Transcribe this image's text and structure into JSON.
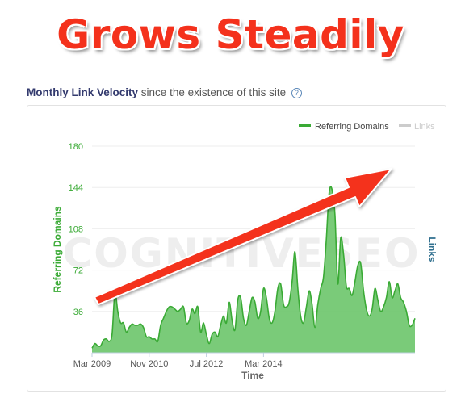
{
  "headline": "Grows Steadily",
  "subtitle": {
    "title": "Monthly Link Velocity",
    "text": "since the existence of this site",
    "help_icon": "question-circle-icon"
  },
  "watermark": "COGNITIVESEO",
  "colors": {
    "series_green": "#3aaa35",
    "area_fill": "#6cc56a",
    "links_gray": "#cccccc",
    "arrow_red": "#f4311c",
    "headline_red": "#f4311c"
  },
  "chart_data": {
    "type": "area",
    "xlabel": "Time",
    "ylabel": "Referring Domains",
    "y2label": "Links",
    "ylim": [
      0,
      180
    ],
    "yticks": [
      36,
      72,
      108,
      144,
      180
    ],
    "xticks": [
      "Mar 2009",
      "Nov 2010",
      "Jul 2012",
      "Mar 2014"
    ],
    "legend": [
      "Referring Domains",
      "Links"
    ],
    "legend_position": "top-right",
    "grid": true,
    "series": [
      {
        "name": "Referring Domains",
        "x_start": "2009-03",
        "x_end": "2014-08",
        "values": [
          4,
          8,
          6,
          6,
          11,
          12,
          10,
          16,
          52,
          36,
          26,
          26,
          18,
          22,
          25,
          24,
          24,
          25,
          22,
          14,
          14,
          12,
          12,
          10,
          24,
          30,
          36,
          40,
          40,
          38,
          36,
          38,
          40,
          26,
          28,
          38,
          34,
          40,
          18,
          26,
          16,
          8,
          16,
          18,
          14,
          24,
          32,
          26,
          44,
          28,
          20,
          46,
          48,
          30,
          24,
          36,
          48,
          44,
          30,
          36,
          56,
          48,
          30,
          26,
          36,
          56,
          60,
          42,
          40,
          44,
          62,
          88,
          56,
          32,
          26,
          40,
          54,
          42,
          22,
          42,
          56,
          66,
          100,
          140,
          142,
          120,
          60,
          100,
          86,
          58,
          56,
          50,
          62,
          76,
          78,
          54,
          38,
          32,
          38,
          56,
          46,
          36,
          40,
          48,
          62,
          48,
          54,
          60,
          48,
          44,
          36,
          24,
          24,
          30
        ]
      },
      {
        "name": "Links",
        "values": []
      }
    ]
  }
}
